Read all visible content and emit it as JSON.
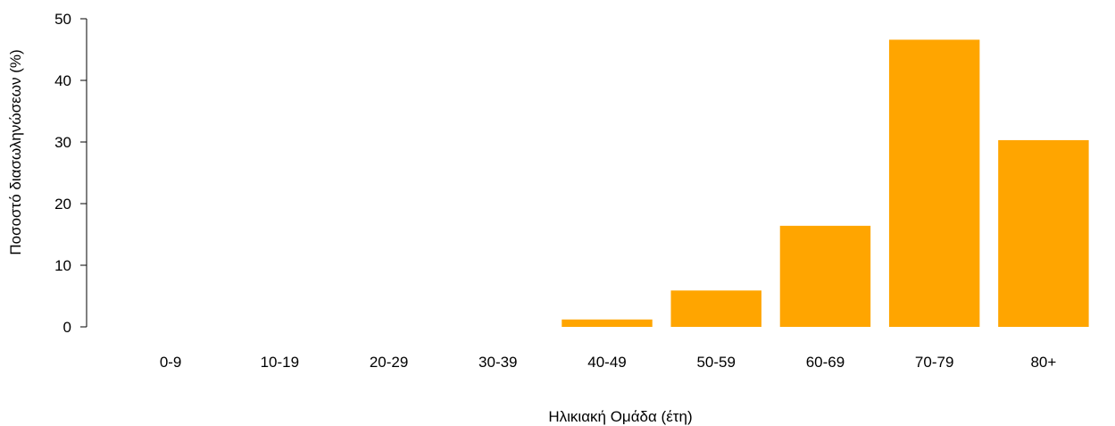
{
  "chart_data": {
    "type": "bar",
    "title": "",
    "xlabel": "Ηλικιακή Ομάδα (έτη)",
    "ylabel": "Ποσοστό διασωληνώσεων (%)",
    "categories": [
      "0-9",
      "10-19",
      "20-29",
      "30-39",
      "40-49",
      "50-59",
      "60-69",
      "70-79",
      "80+"
    ],
    "values": [
      0,
      0,
      0,
      0,
      1.2,
      5.9,
      16.4,
      46.6,
      30.3
    ],
    "ylim": [
      0,
      50
    ],
    "yticks": [
      0,
      10,
      20,
      30,
      40,
      50
    ],
    "grid": false,
    "bar_color": "#FFA500"
  }
}
